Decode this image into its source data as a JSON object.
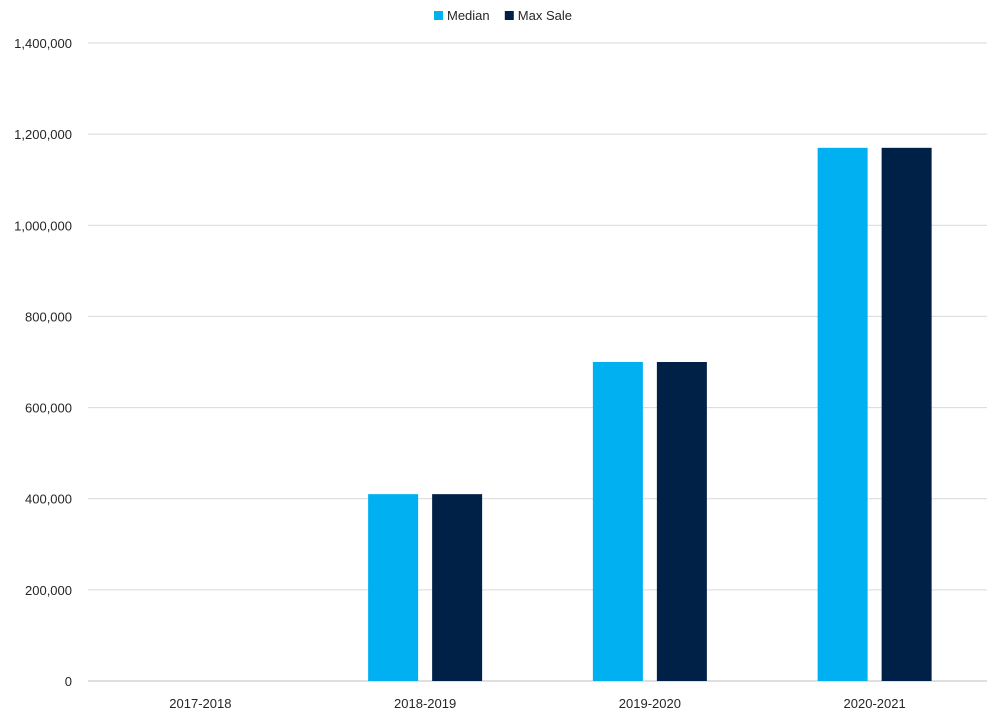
{
  "chart_data": {
    "type": "bar",
    "title": "",
    "xlabel": "",
    "ylabel": "",
    "categories": [
      "2017-2018",
      "2018-2019",
      "2019-2020",
      "2020-2021"
    ],
    "series": [
      {
        "name": "Median",
        "color": "#00B0F0",
        "values": [
          0,
          410000,
          700000,
          1170000
        ]
      },
      {
        "name": "Max Sale",
        "color": "#002147",
        "values": [
          0,
          410000,
          700000,
          1170000
        ]
      }
    ],
    "ylim": [
      0,
      1400000
    ],
    "yticks": [
      0,
      200000,
      400000,
      600000,
      800000,
      1000000,
      1200000,
      1400000
    ],
    "ytick_labels": [
      "0",
      "200,000",
      "400,000",
      "600,000",
      "800,000",
      "1,000,000",
      "1,200,000",
      "1,400,000"
    ],
    "grid": true,
    "legend_position": "top-center"
  }
}
